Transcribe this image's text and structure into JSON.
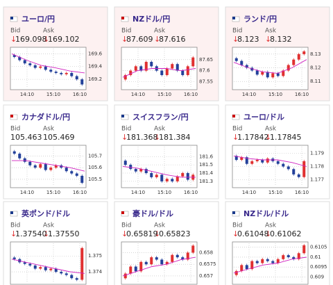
{
  "labels": {
    "bid": "Bid",
    "ask": "Ask"
  },
  "cards": [
    {
      "pair": "ユーロ/円",
      "bid_arrow": "↓",
      "bid": "169.098",
      "ask_arrow": "↓",
      "ask": "169.102",
      "chart": {
        "type": "candlestick",
        "ylim": [
          169.06,
          169.68
        ],
        "yticks": [
          169.2,
          169.4,
          169.6
        ],
        "xlabels": [
          "14:10",
          "15:10",
          "16:10"
        ],
        "open": 169.58,
        "closes": [
          169.55,
          169.5,
          169.45,
          169.42,
          169.38,
          169.4,
          169.35,
          169.32,
          169.3,
          169.28,
          169.3,
          169.25,
          169.2,
          169.12
        ],
        "ma": [
          169.6,
          169.5,
          169.42,
          169.38,
          169.33,
          169.3
        ]
      }
    },
    {
      "pair": "NZドル/円",
      "bid_arrow": "↓",
      "bid": "87.609",
      "ask_arrow": "↓",
      "ask": "87.616",
      "chart": {
        "type": "candlestick",
        "ylim": [
          87.52,
          87.7
        ],
        "yticks": [
          87.55,
          87.6,
          87.65
        ],
        "xlabels": [
          "14:10",
          "15:10",
          "16:10"
        ],
        "open": 87.56,
        "closes": [
          87.58,
          87.6,
          87.62,
          87.6,
          87.64,
          87.62,
          87.6,
          87.58,
          87.61,
          87.63,
          87.6,
          87.58,
          87.62,
          87.66
        ],
        "ma": [
          87.57,
          87.6,
          87.61,
          87.61,
          87.6,
          87.61
        ]
      }
    },
    {
      "pair": "ランド/円",
      "bid_arrow": "↓",
      "bid": "8.123",
      "ask_arrow": "↓",
      "ask": "8.132",
      "chart": {
        "type": "candlestick",
        "ylim": [
          8.105,
          8.134
        ],
        "yticks": [
          8.11,
          8.12,
          8.13
        ],
        "xlabels": [
          "14:10",
          "15:10",
          "16:10"
        ],
        "open": 8.127,
        "closes": [
          8.125,
          8.122,
          8.12,
          8.118,
          8.115,
          8.117,
          8.113,
          8.116,
          8.114,
          8.118,
          8.122,
          8.126,
          8.13,
          8.132
        ],
        "ma": [
          8.124,
          8.12,
          8.117,
          8.116,
          8.12,
          8.126
        ]
      }
    },
    {
      "pair": "カナダドル/円",
      "bid": "105.463",
      "ask": "105.469",
      "chart": {
        "type": "candlestick",
        "ylim": [
          105.44,
          105.78
        ],
        "yticks": [
          105.5,
          105.6,
          105.7
        ],
        "xlabels": [
          "14:10",
          "15:10",
          "16:10"
        ],
        "open": 105.74,
        "closes": [
          105.72,
          105.68,
          105.65,
          105.62,
          105.6,
          105.63,
          105.58,
          105.6,
          105.62,
          105.6,
          105.57,
          105.55,
          105.53,
          105.47
        ],
        "ma": [
          105.66,
          105.66,
          105.64,
          105.62,
          105.6,
          105.57
        ]
      }
    },
    {
      "pair": "スイスフラン/円",
      "bid_arrow": "↓",
      "bid": "181.368",
      "ask_arrow": "↓",
      "ask": "181.384",
      "chart": {
        "type": "candlestick",
        "ylim": [
          181.24,
          181.72
        ],
        "yticks": [
          181.3,
          181.4,
          181.5,
          181.6
        ],
        "xlabels": [
          "14:10",
          "15:10",
          "16:10"
        ],
        "open": 181.55,
        "closes": [
          181.5,
          181.45,
          181.42,
          181.45,
          181.4,
          181.35,
          181.38,
          181.3,
          181.33,
          181.3,
          181.36,
          181.4,
          181.32,
          181.38
        ],
        "ma": [
          181.48,
          181.46,
          181.42,
          181.38,
          181.35,
          181.35
        ]
      }
    },
    {
      "pair": "ユーロ/ドル",
      "bid_arrow": "↓",
      "bid": "1.17842",
      "ask_arrow": "↓",
      "ask": "1.17845",
      "chart": {
        "type": "candlestick",
        "ylim": [
          1.1765,
          1.1795
        ],
        "yticks": [
          1.177,
          1.178,
          1.179
        ],
        "xlabels": [
          "14:10",
          "15:10",
          "16:10"
        ],
        "open": 1.1788,
        "closes": [
          1.1785,
          1.1787,
          1.1782,
          1.1784,
          1.1785,
          1.1783,
          1.1786,
          1.1784,
          1.1782,
          1.178,
          1.1778,
          1.1774,
          1.1772,
          1.1784
        ],
        "ma": [
          1.1788,
          1.1786,
          1.1785,
          1.1785,
          1.1783,
          1.178
        ]
      }
    },
    {
      "pair": "英ポンド/ドル",
      "bid_arrow": "↓",
      "bid": "1.37540",
      "ask_arrow": "↓",
      "ask": "1.37550",
      "chart": {
        "type": "candlestick",
        "ylim": [
          1.3733,
          1.3758
        ],
        "yticks": [
          1.374,
          1.375
        ],
        "xlabels": [
          "14:10",
          "15:10",
          "16:10"
        ],
        "open": 1.3749,
        "closes": [
          1.3748,
          1.3746,
          1.3745,
          1.3744,
          1.3742,
          1.3743,
          1.3741,
          1.3742,
          1.374,
          1.3739,
          1.3738,
          1.3736,
          1.3735,
          1.3755
        ],
        "ma": [
          1.3748,
          1.3746,
          1.3744,
          1.3742,
          1.374,
          1.3739
        ]
      }
    },
    {
      "pair": "豪ドル/ドル",
      "bid_arrow": "↓",
      "bid": "0.65819",
      "ask_arrow": "↓",
      "ask": "0.65823",
      "chart": {
        "type": "candlestick",
        "ylim": [
          0.6567,
          0.6584
        ],
        "yticks": [
          0.657,
          0.6575,
          0.658
        ],
        "xlabels": [
          "14:10",
          "15:10",
          "16:10"
        ],
        "open": 0.6569,
        "closes": [
          0.6571,
          0.6574,
          0.6572,
          0.6576,
          0.6575,
          0.6578,
          0.6577,
          0.6575,
          0.6576,
          0.6579,
          0.6578,
          0.6577,
          0.658,
          0.6583
        ],
        "ma": [
          0.657,
          0.6572,
          0.6574,
          0.6575,
          0.6577,
          0.6578
        ]
      }
    },
    {
      "pair": "NZドル/ドル",
      "bid_arrow": "↓",
      "bid": "0.61048",
      "ask_arrow": "↓",
      "ask": "0.61062",
      "chart": {
        "type": "candlestick",
        "ylim": [
          0.6087,
          0.6107
        ],
        "yticks": [
          0.609,
          0.6095,
          0.61,
          0.6105
        ],
        "xlabels": [
          "14:10",
          "15:10",
          "16:10"
        ],
        "open": 0.6091,
        "closes": [
          0.6093,
          0.6096,
          0.6094,
          0.6098,
          0.6097,
          0.6099,
          0.6098,
          0.6097,
          0.6099,
          0.6101,
          0.61,
          0.6099,
          0.6102,
          0.6106
        ],
        "ma": [
          0.6092,
          0.6094,
          0.6096,
          0.6097,
          0.6099,
          0.61
        ]
      }
    }
  ]
}
